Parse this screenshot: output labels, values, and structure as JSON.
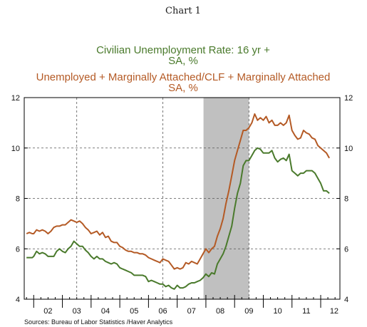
{
  "chart_data": {
    "type": "line",
    "title": "Chart 1",
    "y_ticks": [
      "4",
      "6",
      "8",
      "10",
      "12"
    ],
    "ylim": [
      4,
      12
    ],
    "x_range": [
      2001.67,
      2012.67
    ],
    "x_labels": [
      "02",
      "03",
      "04",
      "05",
      "06",
      "07",
      "08",
      "09",
      "10",
      "11",
      "12"
    ],
    "grid": "dashed",
    "recession_shade": [
      2007.917,
      2009.5
    ],
    "source": "Sources:  Bureau of Labor Statistics /Haver Analytics",
    "series": [
      {
        "name": "Civilian Unemployment Rate: 16 yr +",
        "unit_label": "SA, %",
        "color": "#4a7a2c",
        "points": [
          [
            2001.75,
            5.65
          ],
          [
            2001.85,
            5.65
          ],
          [
            2001.95,
            5.65
          ],
          [
            2002.0,
            5.7
          ],
          [
            2002.1,
            5.9
          ],
          [
            2002.2,
            5.8
          ],
          [
            2002.3,
            5.85
          ],
          [
            2002.4,
            5.8
          ],
          [
            2002.5,
            5.7
          ],
          [
            2002.6,
            5.7
          ],
          [
            2002.7,
            5.7
          ],
          [
            2002.8,
            5.9
          ],
          [
            2002.9,
            6.0
          ],
          [
            2003.0,
            5.9
          ],
          [
            2003.1,
            5.85
          ],
          [
            2003.2,
            6.0
          ],
          [
            2003.3,
            6.1
          ],
          [
            2003.4,
            6.3
          ],
          [
            2003.5,
            6.2
          ],
          [
            2003.6,
            6.1
          ],
          [
            2003.7,
            6.1
          ],
          [
            2003.8,
            5.95
          ],
          [
            2003.9,
            5.85
          ],
          [
            2004.0,
            5.7
          ],
          [
            2004.1,
            5.6
          ],
          [
            2004.2,
            5.7
          ],
          [
            2004.3,
            5.6
          ],
          [
            2004.4,
            5.6
          ],
          [
            2004.5,
            5.5
          ],
          [
            2004.6,
            5.45
          ],
          [
            2004.7,
            5.4
          ],
          [
            2004.8,
            5.45
          ],
          [
            2004.9,
            5.4
          ],
          [
            2005.0,
            5.25
          ],
          [
            2005.1,
            5.2
          ],
          [
            2005.2,
            5.15
          ],
          [
            2005.3,
            5.1
          ],
          [
            2005.4,
            5.05
          ],
          [
            2005.5,
            4.95
          ],
          [
            2005.6,
            4.95
          ],
          [
            2005.7,
            4.95
          ],
          [
            2005.8,
            4.95
          ],
          [
            2005.9,
            4.9
          ],
          [
            2006.0,
            4.7
          ],
          [
            2006.1,
            4.75
          ],
          [
            2006.2,
            4.7
          ],
          [
            2006.3,
            4.65
          ],
          [
            2006.4,
            4.6
          ],
          [
            2006.5,
            4.6
          ],
          [
            2006.6,
            4.5
          ],
          [
            2006.7,
            4.55
          ],
          [
            2006.8,
            4.45
          ],
          [
            2006.9,
            4.4
          ],
          [
            2007.0,
            4.55
          ],
          [
            2007.1,
            4.45
          ],
          [
            2007.2,
            4.45
          ],
          [
            2007.3,
            4.5
          ],
          [
            2007.4,
            4.6
          ],
          [
            2007.5,
            4.65
          ],
          [
            2007.6,
            4.65
          ],
          [
            2007.7,
            4.7
          ],
          [
            2007.8,
            4.75
          ],
          [
            2007.9,
            4.85
          ],
          [
            2008.0,
            5.0
          ],
          [
            2008.1,
            4.9
          ],
          [
            2008.2,
            5.05
          ],
          [
            2008.3,
            5.0
          ],
          [
            2008.4,
            5.4
          ],
          [
            2008.5,
            5.6
          ],
          [
            2008.6,
            5.8
          ],
          [
            2008.7,
            6.1
          ],
          [
            2008.8,
            6.5
          ],
          [
            2008.9,
            6.9
          ],
          [
            2009.0,
            7.6
          ],
          [
            2009.1,
            8.2
          ],
          [
            2009.2,
            8.6
          ],
          [
            2009.3,
            9.3
          ],
          [
            2009.4,
            9.5
          ],
          [
            2009.5,
            9.5
          ],
          [
            2009.6,
            9.7
          ],
          [
            2009.7,
            9.9
          ],
          [
            2009.8,
            10.0
          ],
          [
            2009.9,
            9.95
          ],
          [
            2010.0,
            9.8
          ],
          [
            2010.1,
            9.8
          ],
          [
            2010.2,
            9.8
          ],
          [
            2010.3,
            9.9
          ],
          [
            2010.4,
            9.6
          ],
          [
            2010.5,
            9.45
          ],
          [
            2010.6,
            9.55
          ],
          [
            2010.7,
            9.6
          ],
          [
            2010.8,
            9.5
          ],
          [
            2010.9,
            9.75
          ],
          [
            2011.0,
            9.1
          ],
          [
            2011.1,
            9.0
          ],
          [
            2011.2,
            8.9
          ],
          [
            2011.3,
            9.0
          ],
          [
            2011.4,
            9.0
          ],
          [
            2011.5,
            9.1
          ],
          [
            2011.6,
            9.1
          ],
          [
            2011.7,
            9.1
          ],
          [
            2011.8,
            9.0
          ],
          [
            2011.9,
            8.8
          ],
          [
            2012.0,
            8.6
          ],
          [
            2012.1,
            8.3
          ],
          [
            2012.2,
            8.3
          ],
          [
            2012.3,
            8.2
          ]
        ]
      },
      {
        "name": "Unemployed + Marginally Attached/CLF + Marginally Attached",
        "unit_label": "SA, %",
        "color": "#b45a25",
        "points": [
          [
            2001.75,
            6.6
          ],
          [
            2001.85,
            6.65
          ],
          [
            2001.95,
            6.6
          ],
          [
            2002.0,
            6.6
          ],
          [
            2002.1,
            6.75
          ],
          [
            2002.2,
            6.7
          ],
          [
            2002.3,
            6.75
          ],
          [
            2002.4,
            6.7
          ],
          [
            2002.5,
            6.6
          ],
          [
            2002.6,
            6.7
          ],
          [
            2002.7,
            6.85
          ],
          [
            2002.8,
            6.9
          ],
          [
            2002.9,
            6.9
          ],
          [
            2003.0,
            6.95
          ],
          [
            2003.1,
            6.95
          ],
          [
            2003.2,
            7.05
          ],
          [
            2003.3,
            7.15
          ],
          [
            2003.4,
            7.1
          ],
          [
            2003.5,
            7.05
          ],
          [
            2003.6,
            7.1
          ],
          [
            2003.7,
            7.0
          ],
          [
            2003.8,
            6.85
          ],
          [
            2003.9,
            6.75
          ],
          [
            2004.0,
            6.6
          ],
          [
            2004.1,
            6.65
          ],
          [
            2004.2,
            6.7
          ],
          [
            2004.3,
            6.55
          ],
          [
            2004.4,
            6.65
          ],
          [
            2004.5,
            6.45
          ],
          [
            2004.6,
            6.5
          ],
          [
            2004.7,
            6.3
          ],
          [
            2004.8,
            6.25
          ],
          [
            2004.9,
            6.25
          ],
          [
            2005.0,
            6.1
          ],
          [
            2005.1,
            6.05
          ],
          [
            2005.2,
            5.95
          ],
          [
            2005.3,
            5.9
          ],
          [
            2005.4,
            5.9
          ],
          [
            2005.5,
            5.85
          ],
          [
            2005.6,
            5.85
          ],
          [
            2005.7,
            5.8
          ],
          [
            2005.8,
            5.8
          ],
          [
            2005.9,
            5.75
          ],
          [
            2006.0,
            5.65
          ],
          [
            2006.1,
            5.6
          ],
          [
            2006.2,
            5.55
          ],
          [
            2006.3,
            5.5
          ],
          [
            2006.4,
            5.45
          ],
          [
            2006.5,
            5.6
          ],
          [
            2006.6,
            5.55
          ],
          [
            2006.7,
            5.5
          ],
          [
            2006.8,
            5.35
          ],
          [
            2006.9,
            5.2
          ],
          [
            2007.0,
            5.25
          ],
          [
            2007.1,
            5.2
          ],
          [
            2007.2,
            5.25
          ],
          [
            2007.3,
            5.45
          ],
          [
            2007.4,
            5.4
          ],
          [
            2007.5,
            5.5
          ],
          [
            2007.6,
            5.45
          ],
          [
            2007.7,
            5.4
          ],
          [
            2007.8,
            5.6
          ],
          [
            2007.9,
            5.8
          ],
          [
            2008.0,
            6.0
          ],
          [
            2008.1,
            5.85
          ],
          [
            2008.2,
            6.0
          ],
          [
            2008.3,
            6.1
          ],
          [
            2008.4,
            6.5
          ],
          [
            2008.5,
            6.8
          ],
          [
            2008.6,
            7.2
          ],
          [
            2008.7,
            7.8
          ],
          [
            2008.8,
            8.3
          ],
          [
            2008.9,
            8.9
          ],
          [
            2009.0,
            9.5
          ],
          [
            2009.1,
            9.9
          ],
          [
            2009.2,
            10.3
          ],
          [
            2009.3,
            10.7
          ],
          [
            2009.4,
            10.7
          ],
          [
            2009.5,
            10.8
          ],
          [
            2009.6,
            11.0
          ],
          [
            2009.7,
            11.35
          ],
          [
            2009.8,
            11.1
          ],
          [
            2009.9,
            11.2
          ],
          [
            2010.0,
            11.1
          ],
          [
            2010.1,
            11.25
          ],
          [
            2010.2,
            11.0
          ],
          [
            2010.3,
            11.1
          ],
          [
            2010.4,
            10.9
          ],
          [
            2010.5,
            10.9
          ],
          [
            2010.6,
            11.0
          ],
          [
            2010.7,
            10.9
          ],
          [
            2010.8,
            11.0
          ],
          [
            2010.9,
            11.3
          ],
          [
            2011.0,
            10.7
          ],
          [
            2011.1,
            10.5
          ],
          [
            2011.2,
            10.35
          ],
          [
            2011.3,
            10.4
          ],
          [
            2011.4,
            10.7
          ],
          [
            2011.5,
            10.6
          ],
          [
            2011.6,
            10.55
          ],
          [
            2011.7,
            10.4
          ],
          [
            2011.8,
            10.35
          ],
          [
            2011.9,
            10.1
          ],
          [
            2012.0,
            10.0
          ],
          [
            2012.1,
            9.9
          ],
          [
            2012.2,
            9.8
          ],
          [
            2012.3,
            9.6
          ]
        ]
      }
    ]
  }
}
